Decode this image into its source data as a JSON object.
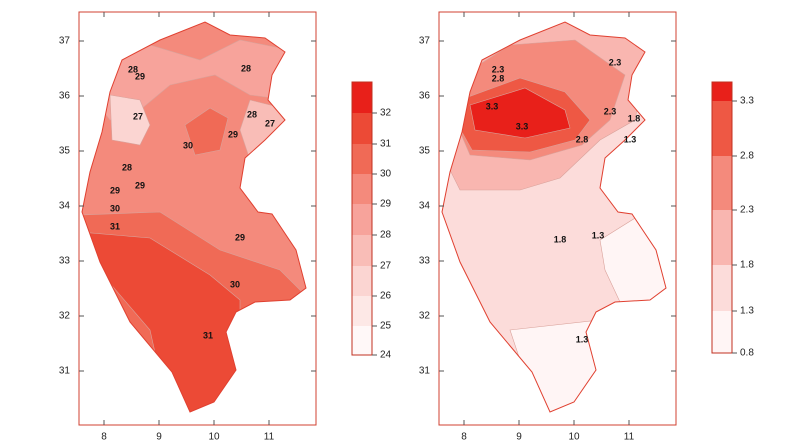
{
  "maps": [
    {
      "xticks": [
        "8",
        "9",
        "10",
        "11"
      ],
      "yticks": [
        "37",
        "36",
        "35",
        "34",
        "33",
        "32",
        "31"
      ],
      "colorbar": {
        "labels": [
          "32",
          "31",
          "30",
          "29",
          "28",
          "27",
          "26",
          "25",
          "24"
        ],
        "colors": [
          "#e8201a",
          "#ec4a36",
          "#f06a56",
          "#f48a7c",
          "#f7a39b",
          "#f9bdb7",
          "#fbd5d2",
          "#fde8e6",
          "#fff8f8"
        ]
      },
      "contour_labels": [
        "28",
        "29",
        "28",
        "27",
        "30",
        "29",
        "28",
        "27",
        "28",
        "29",
        "29",
        "30",
        "31",
        "29",
        "30",
        "31"
      ]
    },
    {
      "xticks": [
        "8",
        "9",
        "10",
        "11"
      ],
      "yticks": [
        "37",
        "36",
        "35",
        "34",
        "33",
        "32",
        "31"
      ],
      "colorbar": {
        "labels": [
          "3.3",
          "2.8",
          "2.3",
          "1.8",
          "1.3",
          "0.8"
        ],
        "colors": [
          "#e8201a",
          "#ee5844",
          "#f48a7c",
          "#f9b6b0",
          "#fcdcda",
          "#fff5f5"
        ]
      },
      "contour_labels": [
        "2.3",
        "2.8",
        "2.3",
        "3.3",
        "3.3",
        "2.8",
        "2.3",
        "1.8",
        "1.3",
        "1.8",
        "1.3",
        "1.3"
      ]
    }
  ]
}
